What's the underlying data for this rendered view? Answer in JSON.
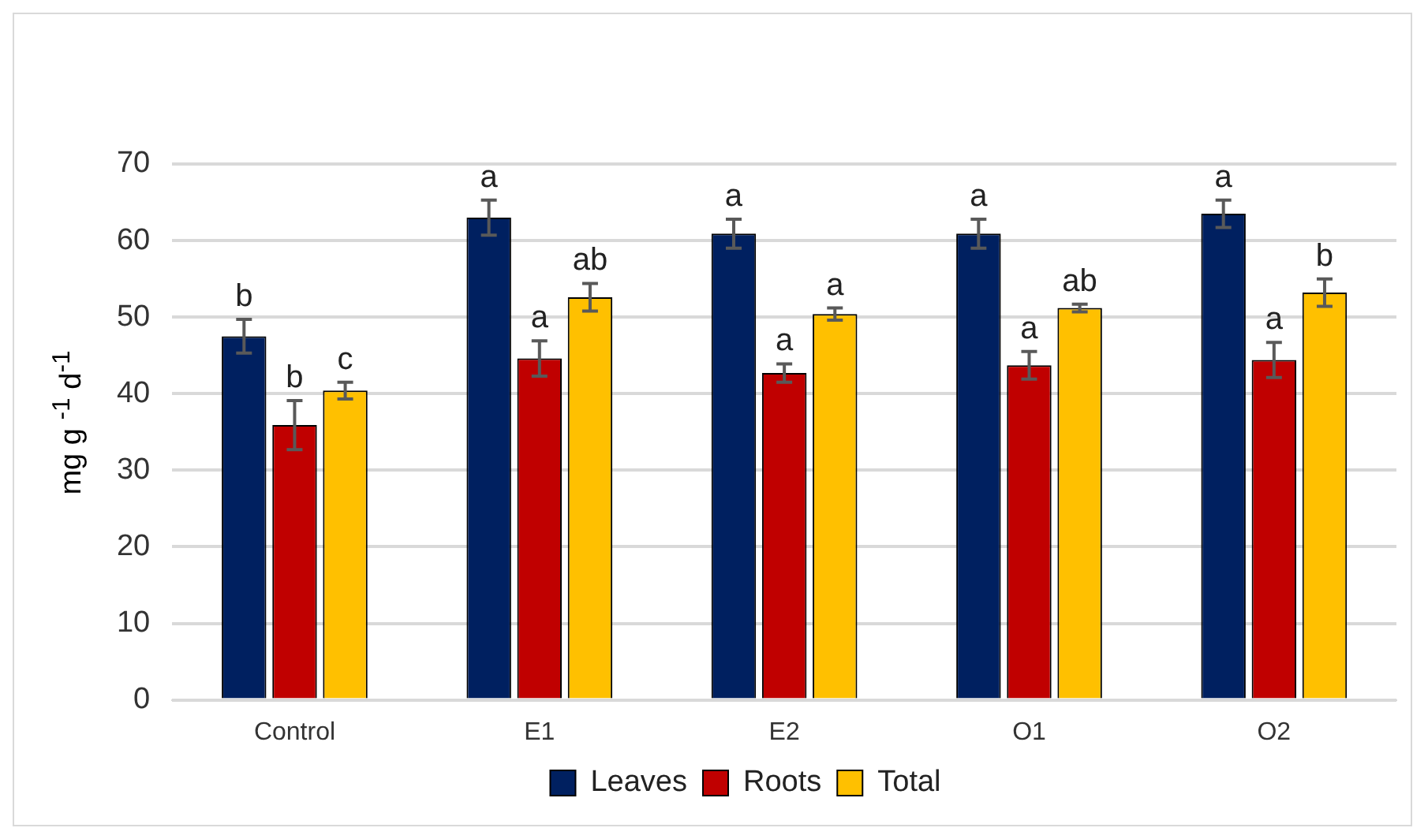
{
  "chart_data": {
    "type": "bar",
    "ylabel": "mg g $^{-1}$ d$^{-1}$",
    "categories": [
      "Control",
      "E1",
      "E2",
      "O1",
      "O2"
    ],
    "series": [
      {
        "name": "Leaves",
        "color": "#002060",
        "values": [
          47.5,
          63.0,
          60.9,
          60.9,
          63.5
        ],
        "errors": [
          2.2,
          2.3,
          1.9,
          1.9,
          1.8
        ],
        "value_labels": [
          "b",
          "a",
          "a",
          "a",
          "a"
        ]
      },
      {
        "name": "Roots",
        "color": "#c00000",
        "values": [
          35.9,
          44.6,
          42.7,
          43.7,
          44.4
        ],
        "errors": [
          3.2,
          2.3,
          1.2,
          1.8,
          2.3
        ],
        "value_labels": [
          "b",
          "a",
          "a",
          "a",
          "a"
        ]
      },
      {
        "name": "Total",
        "color": "#ffc000",
        "values": [
          40.4,
          52.6,
          50.4,
          51.2,
          53.2
        ],
        "errors": [
          1.1,
          1.8,
          0.8,
          0.5,
          1.8
        ],
        "value_labels": [
          "c",
          "ab",
          "a",
          "ab",
          "b"
        ]
      }
    ],
    "ylim": [
      0,
      70
    ],
    "yticks": [
      0,
      10,
      20,
      30,
      40,
      50,
      60,
      70
    ],
    "grid": "y",
    "legend": "bottom"
  }
}
